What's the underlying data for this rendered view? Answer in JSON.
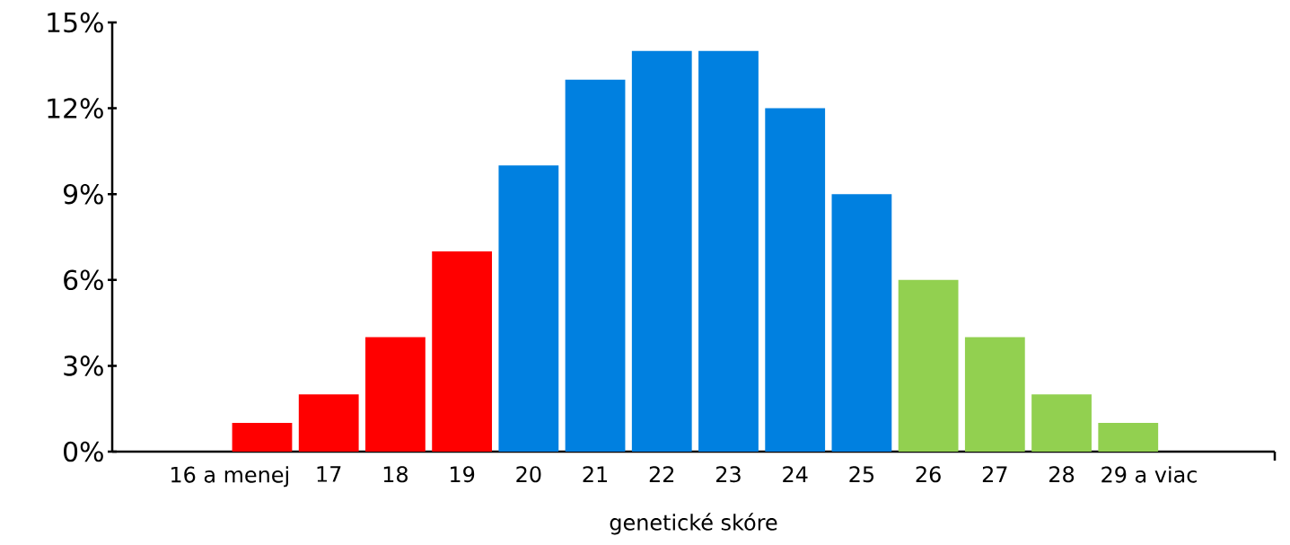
{
  "chart_data": {
    "type": "bar",
    "xlabel": "genetické skóre",
    "categories": [
      "16 a menej",
      "17",
      "18",
      "19",
      "20",
      "21",
      "22",
      "23",
      "24",
      "25",
      "26",
      "27",
      "28",
      "29 a viac"
    ],
    "values": [
      1,
      2,
      4,
      7,
      10,
      13,
      14,
      14,
      12,
      9,
      6,
      4,
      2,
      1
    ],
    "colors": [
      "#ff0000",
      "#ff0000",
      "#ff0000",
      "#ff0000",
      "#0080e0",
      "#0080e0",
      "#0080e0",
      "#0080e0",
      "#0080e0",
      "#0080e0",
      "#92d050",
      "#92d050",
      "#92d050",
      "#92d050"
    ],
    "ylim": [
      0,
      15
    ],
    "yticks": [
      {
        "value": 0,
        "label": "0%"
      },
      {
        "value": 3,
        "label": "3%"
      },
      {
        "value": 6,
        "label": "6%"
      },
      {
        "value": 9,
        "label": "9%"
      },
      {
        "value": 12,
        "label": "12%"
      },
      {
        "value": 15,
        "label": "15%"
      }
    ]
  }
}
